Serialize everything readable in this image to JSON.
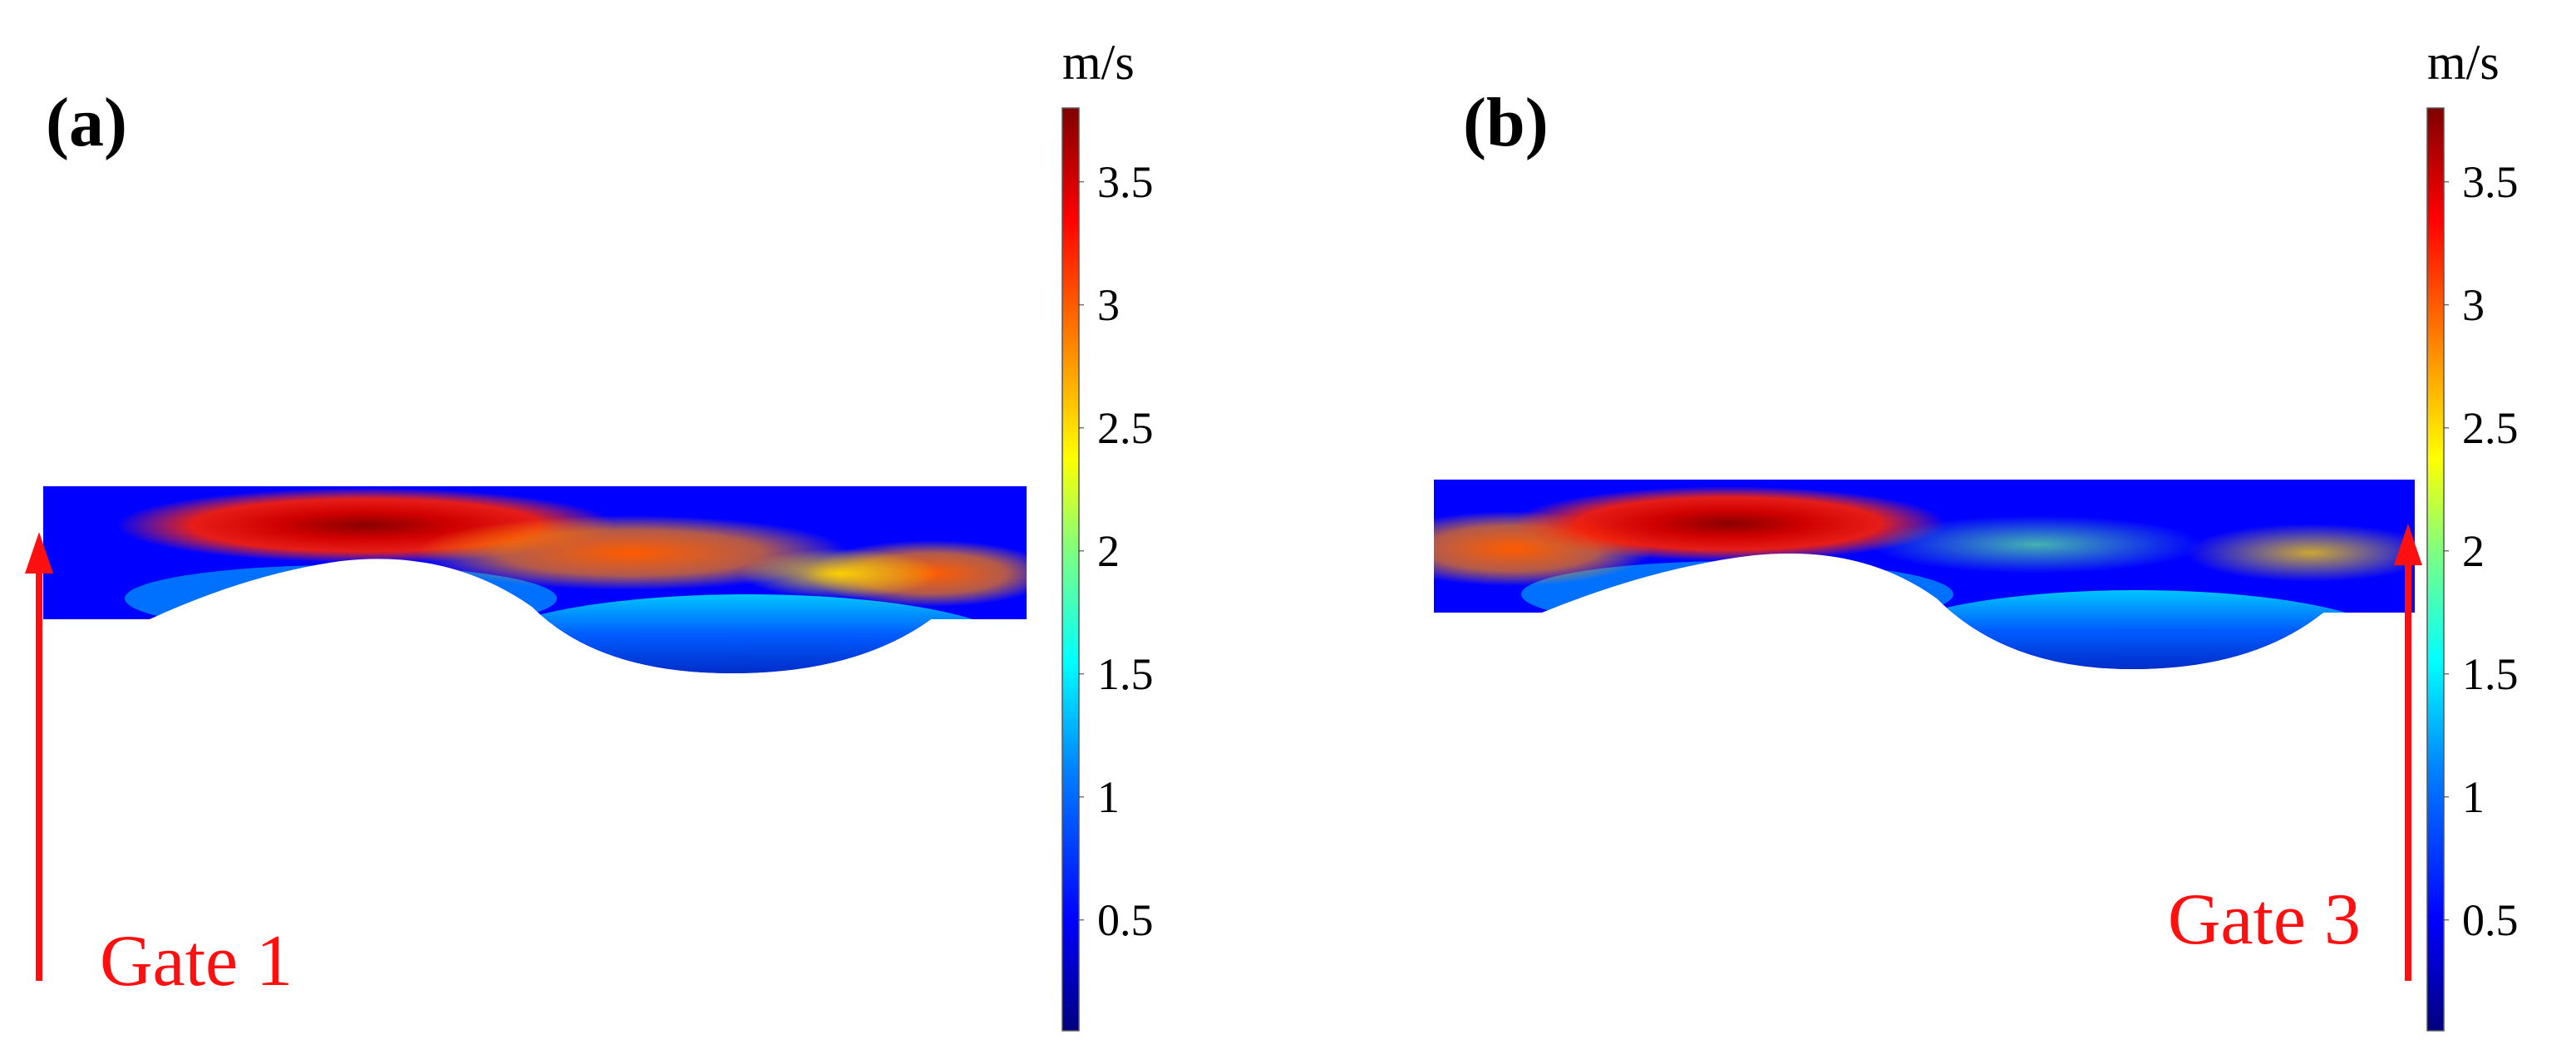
{
  "colors": {
    "arrow": "#ff1010",
    "colormap": [
      "#00007f",
      "#0000ff",
      "#007fff",
      "#00ffff",
      "#7fff7f",
      "#ffff00",
      "#ff7f00",
      "#ff0000",
      "#7f0000"
    ]
  },
  "colorbar": {
    "unit": "m/s",
    "min": 0.05,
    "max": 3.8,
    "ticks": [
      "3.5",
      "3",
      "2.5",
      "2",
      "1.5",
      "1",
      "0.5"
    ]
  },
  "panels": [
    {
      "label": "(a)",
      "gate_label": "Gate 1",
      "inlet_side": "left",
      "peak_velocity_location": "upstream-left"
    },
    {
      "label": "(b)",
      "gate_label": "Gate 3",
      "inlet_side": "right",
      "peak_velocity_location": "upstream-left"
    }
  ]
}
